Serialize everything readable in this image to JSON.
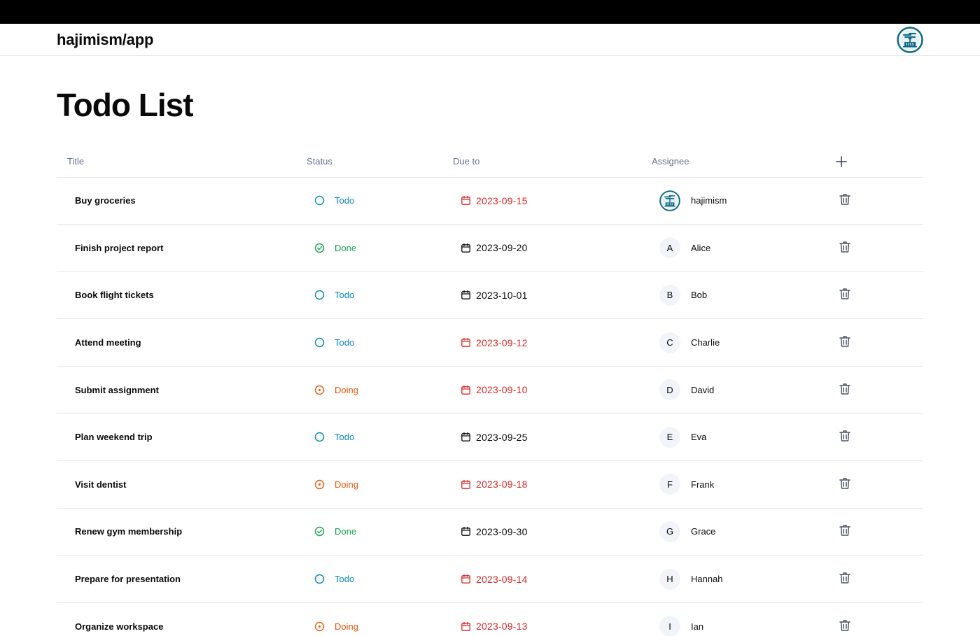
{
  "header": {
    "brand": "hajimism/app",
    "avatar_icon": "bonsai-logo-icon"
  },
  "page": {
    "title": "Todo List"
  },
  "table": {
    "columns": {
      "title": "Title",
      "status": "Status",
      "due": "Due to",
      "assignee": "Assignee",
      "add_icon": "plus-icon"
    },
    "rows": [
      {
        "title": "Buy groceries",
        "status": "Todo",
        "due": "2023-09-15",
        "overdue": true,
        "assignee": "hajimism",
        "initial": "",
        "logo": true
      },
      {
        "title": "Finish project report",
        "status": "Done",
        "due": "2023-09-20",
        "overdue": false,
        "assignee": "Alice",
        "initial": "A"
      },
      {
        "title": "Book flight tickets",
        "status": "Todo",
        "due": "2023-10-01",
        "overdue": false,
        "assignee": "Bob",
        "initial": "B"
      },
      {
        "title": "Attend meeting",
        "status": "Todo",
        "due": "2023-09-12",
        "overdue": true,
        "assignee": "Charlie",
        "initial": "C"
      },
      {
        "title": "Submit assignment",
        "status": "Doing",
        "due": "2023-09-10",
        "overdue": true,
        "assignee": "David",
        "initial": "D"
      },
      {
        "title": "Plan weekend trip",
        "status": "Todo",
        "due": "2023-09-25",
        "overdue": false,
        "assignee": "Eva",
        "initial": "E"
      },
      {
        "title": "Visit dentist",
        "status": "Doing",
        "due": "2023-09-18",
        "overdue": true,
        "assignee": "Frank",
        "initial": "F"
      },
      {
        "title": "Renew gym membership",
        "status": "Done",
        "due": "2023-09-30",
        "overdue": false,
        "assignee": "Grace",
        "initial": "G"
      },
      {
        "title": "Prepare for presentation",
        "status": "Todo",
        "due": "2023-09-14",
        "overdue": true,
        "assignee": "Hannah",
        "initial": "H"
      },
      {
        "title": "Organize workspace",
        "status": "Doing",
        "due": "2023-09-13",
        "overdue": true,
        "assignee": "Ian",
        "initial": "I"
      }
    ]
  },
  "colors": {
    "todo": "#0284c7",
    "done": "#16a34a",
    "doing": "#ea580c",
    "overdue": "#dc2626",
    "logo": "#0f6a83"
  }
}
